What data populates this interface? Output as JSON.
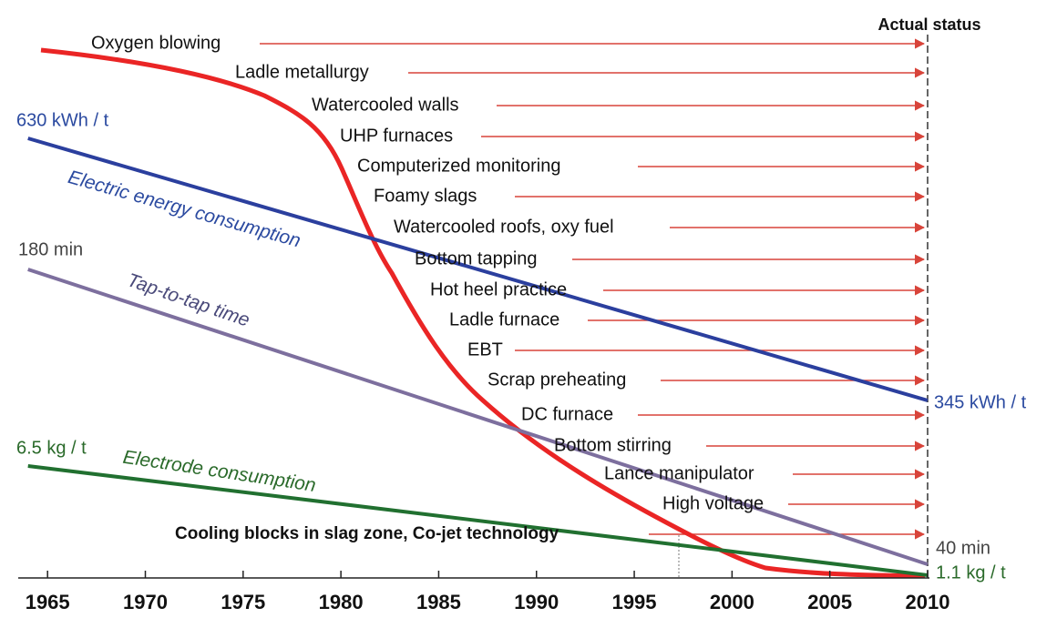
{
  "chart_data": {
    "type": "line",
    "status_label": "Actual status",
    "x_type": "year",
    "xlim": [
      1963.5,
      2010
    ],
    "xticks": [
      1965,
      1970,
      1975,
      1980,
      1985,
      1990,
      1995,
      2000,
      2005,
      2010
    ],
    "series": [
      {
        "name": "Electric energy consumption",
        "color": "#2b3f9e",
        "x": [
          1964,
          2010
        ],
        "values": [
          630,
          345
        ],
        "value_labels": [
          "630 kWh / t",
          "345 kWh / t"
        ]
      },
      {
        "name": "Tap-to-tap time",
        "color": "#7d6f9e",
        "x": [
          1964,
          2010
        ],
        "values": [
          180,
          40
        ],
        "value_labels": [
          "180 min",
          "40 min"
        ]
      },
      {
        "name": "Electrode consumption",
        "color": "#217030",
        "x": [
          1964,
          2010
        ],
        "values": [
          6.5,
          1.1
        ],
        "value_labels": [
          "6.5 kg / t",
          "1.1 kg / t"
        ]
      }
    ],
    "annotations": [
      "Oxygen blowing",
      "Ladle metallurgy",
      "Watercooled walls",
      "UHP furnaces",
      "Computerized monitoring",
      "Foamy slags",
      "Watercooled roofs, oxy fuel",
      "Bottom tapping",
      "Hot heel practice",
      "Ladle furnace",
      "EBT",
      "Scrap preheating",
      "DC furnace",
      "Bottom stirring",
      "Lance manipulator",
      "High voltage",
      "Cooling blocks in slag zone, Co-jet technology"
    ]
  }
}
